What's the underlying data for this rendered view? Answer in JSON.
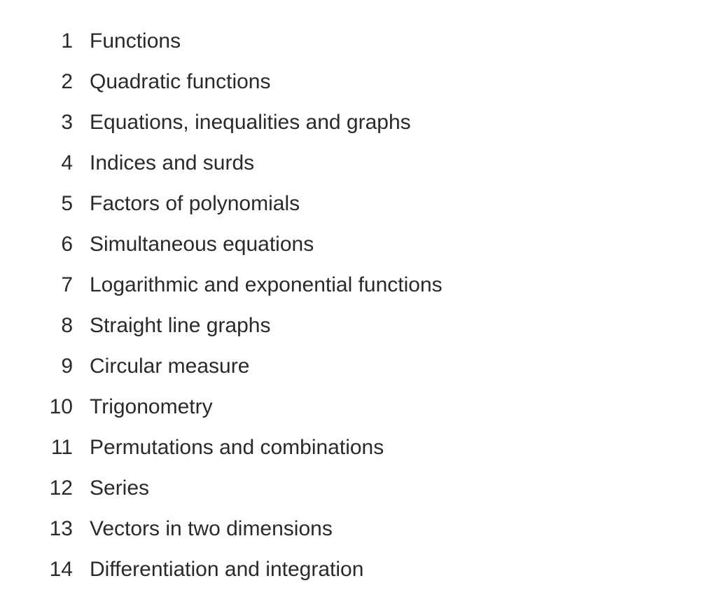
{
  "text_color": "#2a2a2a",
  "background_color": "#ffffff",
  "font_size_pt": 22,
  "chapters": [
    {
      "number": "1",
      "title": "Functions"
    },
    {
      "number": "2",
      "title": "Quadratic functions"
    },
    {
      "number": "3",
      "title": "Equations, inequalities and graphs"
    },
    {
      "number": "4",
      "title": "Indices and surds"
    },
    {
      "number": "5",
      "title": "Factors of polynomials"
    },
    {
      "number": "6",
      "title": "Simultaneous equations"
    },
    {
      "number": "7",
      "title": "Logarithmic and exponential functions"
    },
    {
      "number": "8",
      "title": "Straight line graphs"
    },
    {
      "number": "9",
      "title": "Circular measure"
    },
    {
      "number": "10",
      "title": "Trigonometry"
    },
    {
      "number": "11",
      "title": "Permutations and combinations"
    },
    {
      "number": "12",
      "title": "Series"
    },
    {
      "number": "13",
      "title": "Vectors in two dimensions"
    },
    {
      "number": "14",
      "title": "Differentiation and integration"
    }
  ]
}
